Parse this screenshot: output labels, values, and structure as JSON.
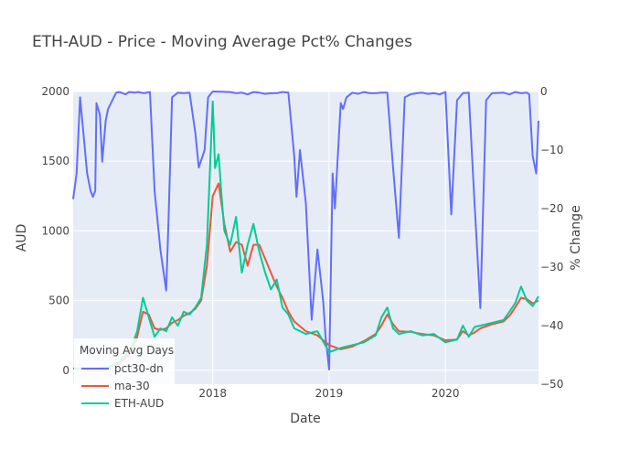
{
  "chart_data": {
    "type": "line",
    "title": "ETH-AUD - Price - Moving Average Pct% Changes",
    "xlabel": "Date",
    "ylabel": "AUD",
    "y2label": "% Change",
    "xlim": [
      2016.8,
      2020.8
    ],
    "ylim": [
      -100,
      2000
    ],
    "y2lim": [
      -50,
      0
    ],
    "x_ticks": [
      2018,
      2019,
      2020
    ],
    "x_tick_labels": [
      "2018",
      "2019",
      "2020"
    ],
    "y_ticks": [
      0,
      500,
      1000,
      1500,
      2000
    ],
    "y_tick_labels": [
      "0",
      "500",
      "1000",
      "1500",
      "2000"
    ],
    "y2_ticks": [
      0,
      -10,
      -20,
      -30,
      -40,
      -50
    ],
    "y2_tick_labels": [
      "0",
      "−10",
      "−20",
      "−30",
      "−40",
      "−50"
    ],
    "legend": {
      "title": "Moving Avg Days",
      "position": "bottom-left",
      "entries": [
        {
          "name": "pct30-dn",
          "color": "#636efa"
        },
        {
          "name": "ma-30",
          "color": "#ef553b"
        },
        {
          "name": "ETH-AUD",
          "color": "#00cc96"
        }
      ]
    },
    "series": [
      {
        "name": "ETH-AUD",
        "axis": "y",
        "color": "#00cc96",
        "x": [
          2016.8,
          2016.9,
          2017.0,
          2017.1,
          2017.2,
          2017.3,
          2017.35,
          2017.4,
          2017.45,
          2017.5,
          2017.55,
          2017.6,
          2017.65,
          2017.7,
          2017.75,
          2017.8,
          2017.85,
          2017.9,
          2017.95,
          2018.0,
          2018.02,
          2018.05,
          2018.08,
          2018.1,
          2018.15,
          2018.2,
          2018.25,
          2018.3,
          2018.35,
          2018.4,
          2018.45,
          2018.5,
          2018.55,
          2018.6,
          2018.65,
          2018.7,
          2018.8,
          2018.9,
          2019.0,
          2019.1,
          2019.2,
          2019.3,
          2019.4,
          2019.45,
          2019.5,
          2019.55,
          2019.6,
          2019.7,
          2019.8,
          2019.9,
          2020.0,
          2020.1,
          2020.15,
          2020.2,
          2020.25,
          2020.3,
          2020.4,
          2020.5,
          2020.55,
          2020.6,
          2020.65,
          2020.7,
          2020.75,
          2020.8
        ],
        "values": [
          12,
          14,
          15,
          20,
          60,
          160,
          280,
          520,
          380,
          240,
          300,
          280,
          380,
          320,
          420,
          400,
          450,
          520,
          900,
          1930,
          1450,
          1550,
          1200,
          1000,
          900,
          1100,
          700,
          900,
          1050,
          850,
          700,
          580,
          650,
          450,
          400,
          300,
          260,
          280,
          130,
          160,
          180,
          200,
          250,
          380,
          450,
          300,
          260,
          280,
          250,
          260,
          200,
          220,
          320,
          240,
          310,
          320,
          340,
          360,
          420,
          480,
          600,
          500,
          460,
          530
        ]
      },
      {
        "name": "ma-30",
        "axis": "y",
        "color": "#ef553b",
        "x": [
          2016.8,
          2016.9,
          2017.0,
          2017.1,
          2017.2,
          2017.3,
          2017.35,
          2017.4,
          2017.45,
          2017.5,
          2017.55,
          2017.6,
          2017.65,
          2017.7,
          2017.75,
          2017.8,
          2017.85,
          2017.9,
          2017.95,
          2018.0,
          2018.05,
          2018.1,
          2018.15,
          2018.2,
          2018.25,
          2018.3,
          2018.35,
          2018.4,
          2018.45,
          2018.5,
          2018.55,
          2018.6,
          2018.65,
          2018.7,
          2018.8,
          2018.9,
          2019.0,
          2019.1,
          2019.2,
          2019.3,
          2019.4,
          2019.45,
          2019.5,
          2019.55,
          2019.6,
          2019.7,
          2019.8,
          2019.9,
          2020.0,
          2020.1,
          2020.15,
          2020.2,
          2020.25,
          2020.3,
          2020.4,
          2020.5,
          2020.55,
          2020.6,
          2020.65,
          2020.7,
          2020.75,
          2020.8
        ],
        "values": [
          12,
          13,
          14,
          18,
          50,
          130,
          240,
          420,
          400,
          300,
          290,
          300,
          340,
          360,
          390,
          410,
          440,
          500,
          750,
          1250,
          1340,
          1050,
          850,
          920,
          900,
          750,
          900,
          900,
          800,
          700,
          600,
          520,
          420,
          350,
          280,
          250,
          180,
          150,
          170,
          210,
          260,
          320,
          400,
          330,
          280,
          275,
          260,
          250,
          215,
          220,
          280,
          250,
          270,
          300,
          330,
          350,
          390,
          450,
          520,
          510,
          480,
          500
        ]
      },
      {
        "name": "pct30-dn",
        "axis": "y2",
        "color": "#636efa",
        "x": [
          2016.8,
          2016.83,
          2016.86,
          2016.92,
          2016.95,
          2016.97,
          2016.99,
          2017.0,
          2017.03,
          2017.05,
          2017.08,
          2017.1,
          2017.15,
          2017.17,
          2017.2,
          2017.25,
          2017.28,
          2017.33,
          2017.36,
          2017.38,
          2017.41,
          2017.46,
          2017.5,
          2017.55,
          2017.6,
          2017.62,
          2017.65,
          2017.7,
          2017.75,
          2017.8,
          2017.85,
          2017.88,
          2017.93,
          2017.96,
          2018.0,
          2018.15,
          2018.2,
          2018.25,
          2018.3,
          2018.35,
          2018.4,
          2018.45,
          2018.5,
          2018.55,
          2018.6,
          2018.65,
          2018.7,
          2018.72,
          2018.75,
          2018.8,
          2018.85,
          2018.9,
          2018.95,
          2018.97,
          2019.0,
          2019.03,
          2019.05,
          2019.1,
          2019.12,
          2019.15,
          2019.2,
          2019.25,
          2019.3,
          2019.35,
          2019.4,
          2019.45,
          2019.5,
          2019.55,
          2019.6,
          2019.65,
          2019.7,
          2019.75,
          2019.8,
          2019.85,
          2019.9,
          2019.95,
          2020.0,
          2020.05,
          2020.1,
          2020.15,
          2020.2,
          2020.25,
          2020.3,
          2020.35,
          2020.4,
          2020.5,
          2020.55,
          2020.6,
          2020.65,
          2020.7,
          2020.72,
          2020.75,
          2020.78,
          2020.8
        ],
        "values": [
          -18.4,
          -14,
          -1,
          -14,
          -17,
          -18,
          -17,
          -2,
          -4,
          -12,
          -5,
          -3,
          -1,
          -0.2,
          -0.1,
          -0.5,
          -0.1,
          -0.2,
          -0.1,
          -0.2,
          -0.3,
          -0.1,
          -17,
          -27,
          -34,
          -22,
          -1,
          -0.2,
          -0.3,
          -0.2,
          -7,
          -13,
          -10,
          -1,
          0,
          -0.1,
          -0.3,
          -0.2,
          -0.5,
          -0.1,
          -0.2,
          -0.4,
          -0.3,
          -0.3,
          -0.1,
          -0.2,
          -11,
          -18,
          -10,
          -19,
          -39,
          -27,
          -36,
          -42,
          -47.5,
          -14,
          -20,
          -2,
          -3,
          -1,
          -0.2,
          -0.4,
          -0.1,
          -0.3,
          -0.3,
          -0.2,
          -0.2,
          -13,
          -25,
          -1,
          -0.5,
          -0.3,
          -0.2,
          -0.4,
          -0.3,
          -0.5,
          -0.1,
          -21,
          -1.5,
          -0.3,
          -0.2,
          -19,
          -37,
          -1.5,
          -0.3,
          -0.2,
          -0.5,
          -0.1,
          -0.3,
          -0.2,
          -0.5,
          -11,
          -14,
          -5
        ]
      }
    ]
  }
}
